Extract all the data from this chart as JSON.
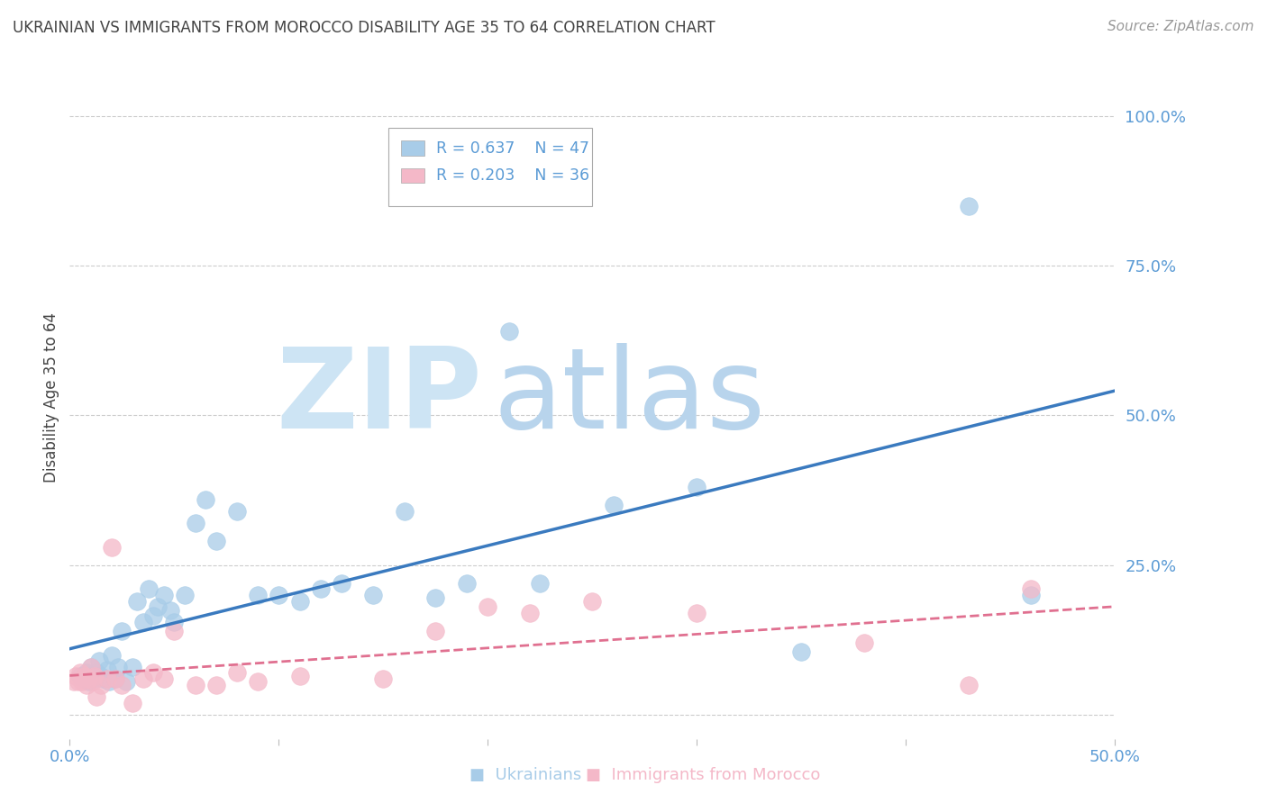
{
  "title": "UKRAINIAN VS IMMIGRANTS FROM MOROCCO DISABILITY AGE 35 TO 64 CORRELATION CHART",
  "source": "Source: ZipAtlas.com",
  "ylabel": "Disability Age 35 to 64",
  "xlim": [
    0.0,
    0.5
  ],
  "ylim": [
    -0.04,
    1.1
  ],
  "xticks": [
    0.0,
    0.1,
    0.2,
    0.3,
    0.4,
    0.5
  ],
  "xticklabels": [
    "0.0%",
    "",
    "",
    "",
    "",
    "50.0%"
  ],
  "yticks": [
    0.0,
    0.25,
    0.5,
    0.75,
    1.0
  ],
  "yticklabels": [
    "",
    "25.0%",
    "50.0%",
    "75.0%",
    "100.0%"
  ],
  "ukrainians": {
    "x": [
      0.005,
      0.007,
      0.008,
      0.009,
      0.01,
      0.012,
      0.013,
      0.014,
      0.015,
      0.016,
      0.018,
      0.019,
      0.02,
      0.022,
      0.023,
      0.025,
      0.027,
      0.03,
      0.032,
      0.035,
      0.038,
      0.04,
      0.042,
      0.045,
      0.048,
      0.05,
      0.055,
      0.06,
      0.065,
      0.07,
      0.08,
      0.09,
      0.1,
      0.11,
      0.12,
      0.13,
      0.145,
      0.16,
      0.175,
      0.19,
      0.21,
      0.225,
      0.26,
      0.3,
      0.35,
      0.43,
      0.46
    ],
    "y": [
      0.065,
      0.06,
      0.07,
      0.055,
      0.08,
      0.06,
      0.07,
      0.09,
      0.065,
      0.06,
      0.075,
      0.055,
      0.1,
      0.06,
      0.08,
      0.14,
      0.055,
      0.08,
      0.19,
      0.155,
      0.21,
      0.165,
      0.18,
      0.2,
      0.175,
      0.155,
      0.2,
      0.32,
      0.36,
      0.29,
      0.34,
      0.2,
      0.2,
      0.19,
      0.21,
      0.22,
      0.2,
      0.34,
      0.195,
      0.22,
      0.64,
      0.22,
      0.35,
      0.38,
      0.105,
      0.85,
      0.2
    ],
    "color": "#a8cce8",
    "R": 0.637,
    "N": 47,
    "line_color": "#3a7abf"
  },
  "morocco": {
    "x": [
      0.002,
      0.003,
      0.004,
      0.005,
      0.006,
      0.007,
      0.008,
      0.009,
      0.01,
      0.011,
      0.012,
      0.013,
      0.015,
      0.018,
      0.02,
      0.022,
      0.025,
      0.03,
      0.035,
      0.04,
      0.045,
      0.05,
      0.06,
      0.07,
      0.08,
      0.09,
      0.11,
      0.15,
      0.175,
      0.2,
      0.22,
      0.25,
      0.3,
      0.38,
      0.43,
      0.46
    ],
    "y": [
      0.055,
      0.065,
      0.055,
      0.07,
      0.055,
      0.065,
      0.05,
      0.06,
      0.08,
      0.055,
      0.065,
      0.03,
      0.05,
      0.06,
      0.28,
      0.06,
      0.05,
      0.02,
      0.06,
      0.07,
      0.06,
      0.14,
      0.05,
      0.05,
      0.07,
      0.055,
      0.065,
      0.06,
      0.14,
      0.18,
      0.17,
      0.19,
      0.17,
      0.12,
      0.05,
      0.21
    ],
    "color": "#f4b8c8",
    "R": 0.203,
    "N": 36,
    "line_color": "#e07090"
  },
  "background_color": "#ffffff",
  "grid_color": "#cccccc",
  "title_color": "#444444",
  "axis_color": "#5b9bd5",
  "watermark_zip": "ZIP",
  "watermark_atlas": "atlas",
  "watermark_color_zip": "#cde4f4",
  "watermark_color_atlas": "#b8d4ec"
}
